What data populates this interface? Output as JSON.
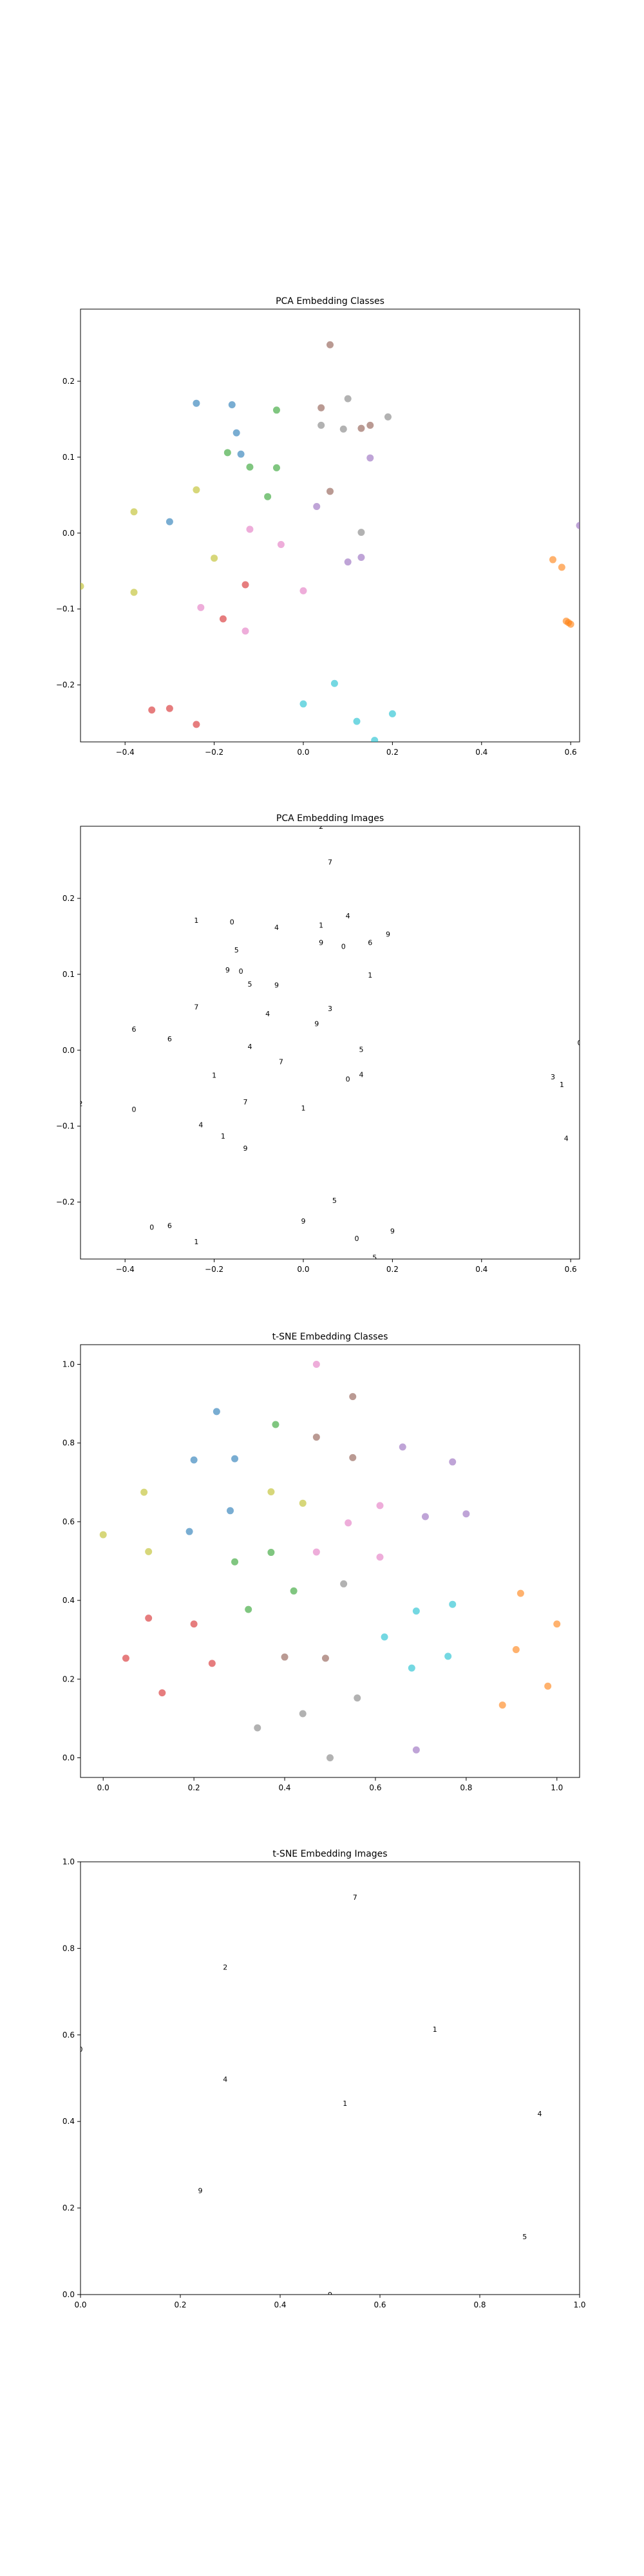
{
  "colors": {
    "blue": "#1f77b4",
    "orange": "#ff7f0e",
    "green": "#2ca02c",
    "red": "#d62728",
    "purple": "#9467bd",
    "brown": "#8c564b",
    "pink": "#e377c2",
    "gray": "#7f7f7f",
    "olive": "#bcbd22",
    "cyan": "#17becf"
  },
  "chart_data": [
    {
      "type": "scatter",
      "title": "PCA Embedding Classes",
      "xlim": [
        -0.5,
        0.62
      ],
      "ylim": [
        -0.275,
        0.295
      ],
      "xticks": [
        -0.4,
        -0.2,
        0.0,
        0.2,
        0.4,
        0.6
      ],
      "xtick_labels": [
        "−0.4",
        "−0.2",
        "0.0",
        "0.2",
        "0.4",
        "0.6"
      ],
      "yticks": [
        -0.2,
        -0.1,
        0.0,
        0.1,
        0.2
      ],
      "ytick_labels": [
        "−0.2",
        "−0.1",
        "0.0",
        "0.1",
        "0.2"
      ],
      "grid": false,
      "series": [
        {
          "color": "blue",
          "points": [
            [
              -0.24,
              0.171
            ],
            [
              -0.16,
              0.169
            ],
            [
              -0.15,
              0.132
            ],
            [
              -0.14,
              0.104
            ],
            [
              -0.3,
              0.015
            ]
          ]
        },
        {
          "color": "orange",
          "points": [
            [
              0.56,
              -0.035
            ],
            [
              0.58,
              -0.045
            ],
            [
              0.59,
              -0.116
            ],
            [
              0.595,
              -0.118
            ],
            [
              0.6,
              -0.12
            ]
          ]
        },
        {
          "color": "green",
          "points": [
            [
              -0.06,
              0.162
            ],
            [
              -0.17,
              0.106
            ],
            [
              -0.12,
              0.087
            ],
            [
              -0.06,
              0.086
            ],
            [
              -0.08,
              0.048
            ]
          ]
        },
        {
          "color": "red",
          "points": [
            [
              -0.13,
              -0.068
            ],
            [
              -0.18,
              -0.113
            ],
            [
              -0.34,
              -0.233
            ],
            [
              -0.3,
              -0.231
            ],
            [
              -0.24,
              -0.252
            ]
          ]
        },
        {
          "color": "purple",
          "points": [
            [
              0.15,
              0.099
            ],
            [
              0.03,
              0.035
            ],
            [
              0.13,
              -0.032
            ],
            [
              0.1,
              -0.038
            ],
            [
              0.62,
              0.01
            ]
          ]
        },
        {
          "color": "brown",
          "points": [
            [
              0.06,
              0.248
            ],
            [
              0.04,
              0.165
            ],
            [
              0.06,
              0.055
            ],
            [
              0.13,
              0.138
            ],
            [
              0.15,
              0.142
            ]
          ]
        },
        {
          "color": "pink",
          "points": [
            [
              -0.12,
              0.005
            ],
            [
              -0.05,
              -0.015
            ],
            [
              0.0,
              -0.076
            ],
            [
              -0.23,
              -0.098
            ],
            [
              -0.13,
              -0.129
            ]
          ]
        },
        {
          "color": "gray",
          "points": [
            [
              0.1,
              0.177
            ],
            [
              0.19,
              0.153
            ],
            [
              0.04,
              0.142
            ],
            [
              0.09,
              0.137
            ],
            [
              0.13,
              0.001
            ]
          ]
        },
        {
          "color": "olive",
          "points": [
            [
              -0.24,
              0.057
            ],
            [
              -0.38,
              0.028
            ],
            [
              -0.2,
              -0.033
            ],
            [
              -0.38,
              -0.078
            ],
            [
              -0.5,
              -0.07
            ]
          ]
        },
        {
          "color": "cyan",
          "points": [
            [
              0.07,
              -0.198
            ],
            [
              -0.0,
              -0.225
            ],
            [
              0.12,
              -0.248
            ],
            [
              0.2,
              -0.238
            ],
            [
              0.16,
              -0.273
            ]
          ]
        }
      ]
    },
    {
      "type": "scatter",
      "title": "PCA Embedding Images",
      "xlim": [
        -0.5,
        0.62
      ],
      "ylim": [
        -0.275,
        0.295
      ],
      "xticks": [
        -0.4,
        -0.2,
        0.0,
        0.2,
        0.4,
        0.6
      ],
      "xtick_labels": [
        "−0.4",
        "−0.2",
        "0.0",
        "0.2",
        "0.4",
        "0.6"
      ],
      "yticks": [
        -0.2,
        -0.1,
        0.0,
        0.1,
        0.2
      ],
      "ytick_labels": [
        "−0.2",
        "−0.1",
        "0.0",
        "0.1",
        "0.2"
      ],
      "grid": false,
      "markers": "digit-thumbnails",
      "points": [
        [
          0.06,
          0.248
        ],
        [
          0.04,
          0.295
        ],
        [
          -0.24,
          0.171
        ],
        [
          -0.16,
          0.169
        ],
        [
          -0.06,
          0.162
        ],
        [
          0.04,
          0.165
        ],
        [
          0.1,
          0.177
        ],
        [
          0.19,
          0.153
        ],
        [
          -0.15,
          0.132
        ],
        [
          0.04,
          0.142
        ],
        [
          0.09,
          0.137
        ],
        [
          0.15,
          0.142
        ],
        [
          -0.17,
          0.106
        ],
        [
          -0.14,
          0.104
        ],
        [
          0.15,
          0.099
        ],
        [
          -0.12,
          0.087
        ],
        [
          -0.06,
          0.086
        ],
        [
          -0.24,
          0.057
        ],
        [
          0.06,
          0.055
        ],
        [
          -0.08,
          0.048
        ],
        [
          0.03,
          0.035
        ],
        [
          -0.38,
          0.028
        ],
        [
          -0.3,
          0.015
        ],
        [
          0.13,
          0.001
        ],
        [
          -0.12,
          0.005
        ],
        [
          0.62,
          0.01
        ],
        [
          -0.05,
          -0.015
        ],
        [
          0.13,
          -0.032
        ],
        [
          0.1,
          -0.038
        ],
        [
          -0.2,
          -0.033
        ],
        [
          0.56,
          -0.035
        ],
        [
          0.58,
          -0.045
        ],
        [
          -0.13,
          -0.068
        ],
        [
          -0.5,
          -0.07
        ],
        [
          0.0,
          -0.076
        ],
        [
          -0.38,
          -0.078
        ],
        [
          -0.23,
          -0.098
        ],
        [
          -0.18,
          -0.113
        ],
        [
          0.59,
          -0.116
        ],
        [
          -0.13,
          -0.129
        ],
        [
          0.07,
          -0.198
        ],
        [
          0.0,
          -0.225
        ],
        [
          -0.34,
          -0.233
        ],
        [
          -0.3,
          -0.231
        ],
        [
          0.2,
          -0.238
        ],
        [
          0.12,
          -0.248
        ],
        [
          -0.24,
          -0.252
        ],
        [
          0.16,
          -0.273
        ]
      ]
    },
    {
      "type": "scatter",
      "title": "t-SNE Embedding Classes",
      "xlim": [
        -0.05,
        1.05
      ],
      "ylim": [
        -0.05,
        1.05
      ],
      "xticks": [
        0.0,
        0.2,
        0.4,
        0.6,
        0.8,
        1.0
      ],
      "xtick_labels": [
        "0.0",
        "0.2",
        "0.4",
        "0.6",
        "0.8",
        "1.0"
      ],
      "yticks": [
        0.0,
        0.2,
        0.4,
        0.6,
        0.8,
        1.0
      ],
      "ytick_labels": [
        "0.0",
        "0.2",
        "0.4",
        "0.6",
        "0.8",
        "1.0"
      ],
      "grid": false,
      "series": [
        {
          "color": "blue",
          "points": [
            [
              0.25,
              0.88
            ],
            [
              0.2,
              0.757
            ],
            [
              0.29,
              0.76
            ],
            [
              0.28,
              0.628
            ],
            [
              0.19,
              0.575
            ]
          ]
        },
        {
          "color": "orange",
          "points": [
            [
              0.92,
              0.418
            ],
            [
              0.91,
              0.275
            ],
            [
              1.0,
              0.34
            ],
            [
              0.88,
              0.134
            ],
            [
              0.98,
              0.182
            ]
          ]
        },
        {
          "color": "green",
          "points": [
            [
              0.38,
              0.847
            ],
            [
              0.29,
              0.498
            ],
            [
              0.37,
              0.522
            ],
            [
              0.42,
              0.424
            ],
            [
              0.32,
              0.377
            ]
          ]
        },
        {
          "color": "red",
          "points": [
            [
              0.1,
              0.355
            ],
            [
              0.2,
              0.34
            ],
            [
              0.05,
              0.253
            ],
            [
              0.24,
              0.24
            ],
            [
              0.13,
              0.165
            ]
          ]
        },
        {
          "color": "purple",
          "points": [
            [
              0.66,
              0.79
            ],
            [
              0.77,
              0.752
            ],
            [
              0.71,
              0.613
            ],
            [
              0.8,
              0.62
            ],
            [
              0.69,
              0.02
            ]
          ]
        },
        {
          "color": "brown",
          "points": [
            [
              0.47,
              0.815
            ],
            [
              0.55,
              0.918
            ],
            [
              0.55,
              0.763
            ],
            [
              0.4,
              0.256
            ],
            [
              0.49,
              0.253
            ]
          ]
        },
        {
          "color": "pink",
          "points": [
            [
              0.47,
              1.0
            ],
            [
              0.61,
              0.641
            ],
            [
              0.47,
              0.523
            ],
            [
              0.61,
              0.51
            ],
            [
              0.54,
              0.597
            ]
          ]
        },
        {
          "color": "gray",
          "points": [
            [
              0.56,
              0.152
            ],
            [
              0.44,
              0.112
            ],
            [
              0.34,
              0.076
            ],
            [
              0.5,
              0.0
            ],
            [
              0.53,
              0.442
            ]
          ]
        },
        {
          "color": "olive",
          "points": [
            [
              0.09,
              0.675
            ],
            [
              0.1,
              0.524
            ],
            [
              0.0,
              0.567
            ],
            [
              0.37,
              0.676
            ],
            [
              0.44,
              0.647
            ]
          ]
        },
        {
          "color": "cyan",
          "points": [
            [
              0.77,
              0.39
            ],
            [
              0.69,
              0.373
            ],
            [
              0.62,
              0.307
            ],
            [
              0.76,
              0.258
            ],
            [
              0.68,
              0.228
            ]
          ]
        }
      ]
    },
    {
      "type": "scatter",
      "title": "t-SNE Embedding Images",
      "xlim": [
        0.0,
        1.0
      ],
      "ylim": [
        0.0,
        1.0
      ],
      "xticks": [
        0.0,
        0.2,
        0.4,
        0.6,
        0.8,
        1.0
      ],
      "xtick_labels": [
        "0.0",
        "0.2",
        "0.4",
        "0.6",
        "0.8",
        "1.0"
      ],
      "yticks": [
        0.0,
        0.2,
        0.4,
        0.6,
        0.8,
        1.0
      ],
      "ytick_labels": [
        "0.0",
        "0.2",
        "0.4",
        "0.6",
        "0.8",
        "1.0"
      ],
      "grid": false,
      "markers": "digit-thumbnails",
      "points": [
        [
          0.55,
          0.918
        ],
        [
          0.29,
          0.757
        ],
        [
          0.71,
          0.613
        ],
        [
          0.0,
          0.567
        ],
        [
          0.29,
          0.498
        ],
        [
          0.53,
          0.442
        ],
        [
          0.92,
          0.418
        ],
        [
          0.24,
          0.24
        ],
        [
          0.89,
          0.134
        ],
        [
          0.5,
          0.0
        ]
      ]
    }
  ]
}
